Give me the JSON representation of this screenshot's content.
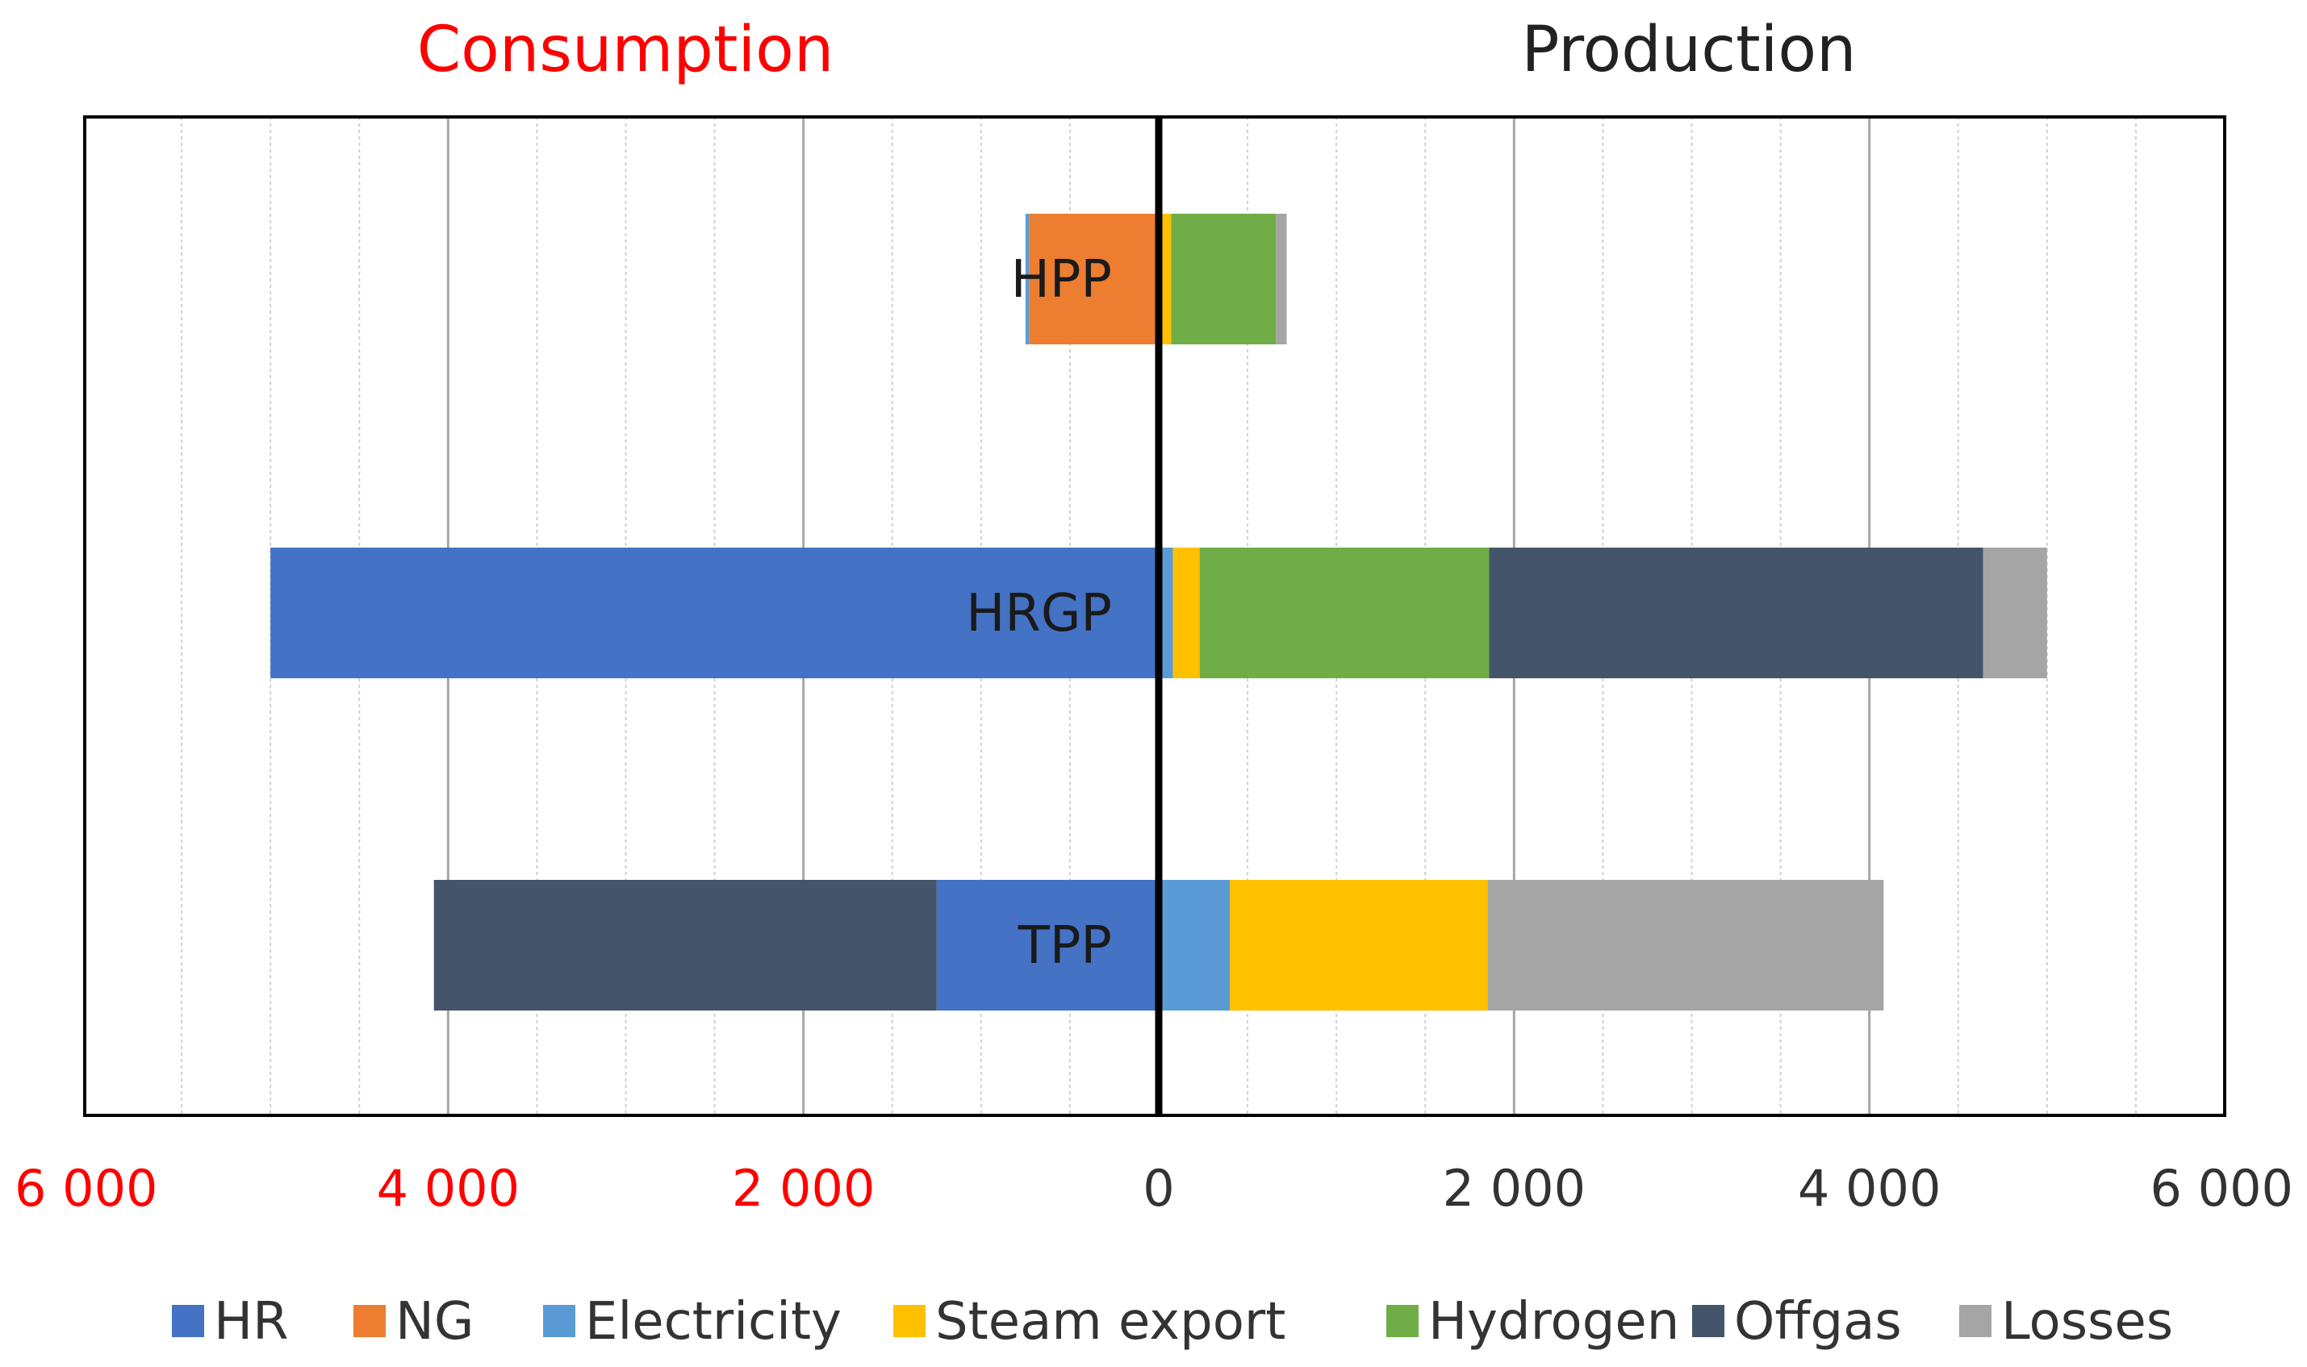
{
  "chart_data": {
    "type": "bar",
    "orientation": "horizontal",
    "stacked": true,
    "diverging": true,
    "left_title": "Consumption",
    "right_title": "Production",
    "categories": [
      "HPP",
      "HRGP",
      "TPP"
    ],
    "xlim": [
      -6000,
      6000
    ],
    "x_ticks": [
      {
        "value": -6000,
        "label": "6 000"
      },
      {
        "value": -4000,
        "label": "4 000"
      },
      {
        "value": -2000,
        "label": "2 000"
      },
      {
        "value": 0,
        "label": "0"
      },
      {
        "value": 2000,
        "label": "2 000"
      },
      {
        "value": 4000,
        "label": "4 000"
      },
      {
        "value": 6000,
        "label": "6 000"
      }
    ],
    "minor_gridline_step": 500,
    "consumption_order": [
      "NG",
      "HR",
      "Offgas",
      "Electricity"
    ],
    "production_order": [
      "Electricity",
      "Steam export",
      "Hydrogen",
      "Offgas",
      "Losses"
    ],
    "series": [
      {
        "name": "HR",
        "color": "#4472C4",
        "consumption": [
          0,
          5000,
          1250
        ],
        "production": [
          0,
          0,
          0
        ]
      },
      {
        "name": "NG",
        "color": "#ED7D31",
        "consumption": [
          730,
          0,
          0
        ],
        "production": [
          0,
          0,
          0
        ]
      },
      {
        "name": "Electricity",
        "color": "#5B9BD5",
        "consumption": [
          20,
          0,
          0
        ],
        "production": [
          0,
          80,
          400
        ]
      },
      {
        "name": "Steam export",
        "color": "#FFC000",
        "consumption": [
          0,
          0,
          0
        ],
        "production": [
          70,
          150,
          1450
        ]
      },
      {
        "name": "Hydrogen",
        "color": "#70AD47",
        "consumption": [
          0,
          0,
          0
        ],
        "production": [
          590,
          1630,
          0
        ]
      },
      {
        "name": "Offgas",
        "color": "#44546A",
        "consumption": [
          0,
          0,
          2830
        ],
        "production": [
          0,
          2780,
          0
        ]
      },
      {
        "name": "Losses",
        "color": "#A5A5A5",
        "consumption": [
          0,
          0,
          0
        ],
        "production": [
          60,
          360,
          2230
        ]
      }
    ],
    "colors": {
      "consumption_title": "#FF0000",
      "production_title": "#222222",
      "negative_ticks": "#FF0000",
      "positive_ticks": "#333333",
      "gridline": "#D0D0D0",
      "major_gridline": "#A6A6A6",
      "frame": "#000000",
      "zero_line": "#000000"
    }
  }
}
